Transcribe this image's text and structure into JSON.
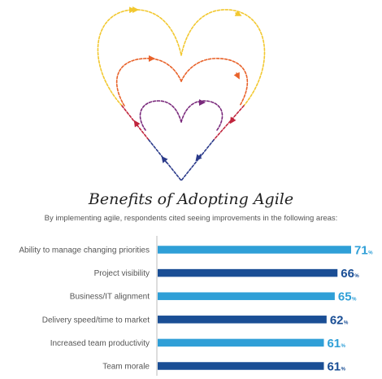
{
  "chart_data": {
    "type": "bar",
    "orientation": "horizontal",
    "title": "Benefits of Adopting Agile",
    "subtitle": "By implementing agile, respondents cited seeing improvements in the following areas:",
    "categories": [
      "Ability to manage changing priorities",
      "Project visibility",
      "Business/IT alignment",
      "Delivery speed/time to market",
      "Increased team productivity",
      "Team morale"
    ],
    "values": [
      71,
      66,
      65,
      62,
      61,
      61
    ],
    "value_suffix": "%",
    "xlim": [
      0,
      100
    ],
    "grid": false,
    "legend": "none",
    "colors": [
      "#2f9fd7",
      "#1a4e95",
      "#2f9fd7",
      "#1a4e95",
      "#2f9fd7",
      "#1a4e95"
    ]
  },
  "illustration": {
    "colors": {
      "yellow": "#f2c830",
      "orange": "#e8622a",
      "red": "#c0243c",
      "purple": "#7a2a7c",
      "navy": "#2a3a8a"
    }
  }
}
